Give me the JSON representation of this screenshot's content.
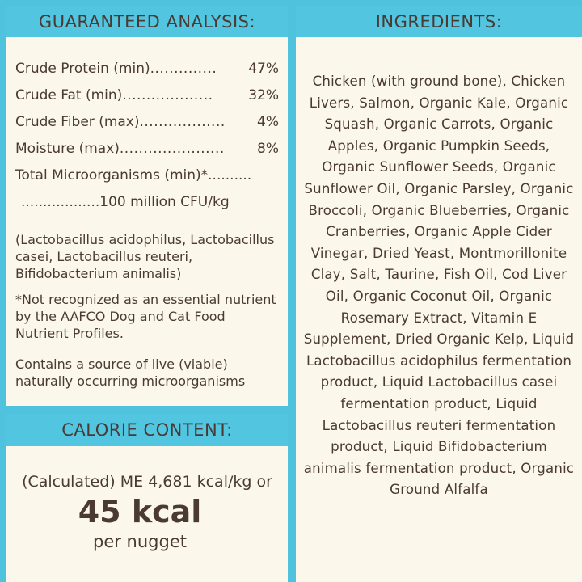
{
  "guaranteed_analysis": {
    "title": "GUARANTEED ANALYSIS:",
    "rows": [
      {
        "label": "Crude Protein (min)",
        "dots": "..............",
        "value": "47%"
      },
      {
        "label": "Crude Fat (min)",
        "dots": "...................",
        "value": "32%"
      },
      {
        "label": "Crude Fiber (max)",
        "dots": "..................",
        "value": "4%"
      },
      {
        "label": "Moisture (max)",
        "dots": "......................",
        "value": "8%"
      }
    ],
    "micro_label": "Total Microorganisms (min)*..........",
    "micro_value": "..................100 million CFU/kg",
    "strains": "(Lactobacillus acidophilus, Lactobacillus casei, Lactobacillus reuteri, Bifidobacterium animalis)",
    "footnote": "*Not recognized as an essential nutrient by the AAFCO Dog and Cat Food Nutrient Profiles.",
    "live_note": "Contains a source of live (viable) naturally occurring microorganisms"
  },
  "calorie_content": {
    "title": "CALORIE CONTENT:",
    "line1": "(Calculated) ME 4,681 kcal/kg or",
    "big": "45 kcal",
    "small": "per nugget"
  },
  "ingredients": {
    "title": "INGREDIENTS:",
    "text": "Chicken (with ground bone), Chicken Livers, Salmon, Organic Kale, Organic Squash, Organic Carrots, Organic Apples, Organic Pumpkin Seeds, Organic Sunflower Seeds, Organic Sunflower Oil, Organic Parsley, Organic Broccoli, Organic Blueberries, Organic Cranberries, Organic Apple Cider Vinegar, Dried Yeast, Montmorillonite Clay, Salt, Taurine, Fish Oil, Cod Liver Oil, Organic Coconut Oil, Organic Rosemary Extract, Vitamin E Supplement, Dried Organic Kelp, Liquid Lactobacillus acidophilus fermentation product, Liquid Lactobacillus casei fermentation product, Liquid Lactobacillus reuteri fermentation product, Liquid Bifidobacterium animalis fermentation product, Organic Ground Alfalfa"
  },
  "colors": {
    "header_bg": "#52c6e0",
    "panel_bg": "#fbf7ea",
    "text": "#4a3a33"
  }
}
